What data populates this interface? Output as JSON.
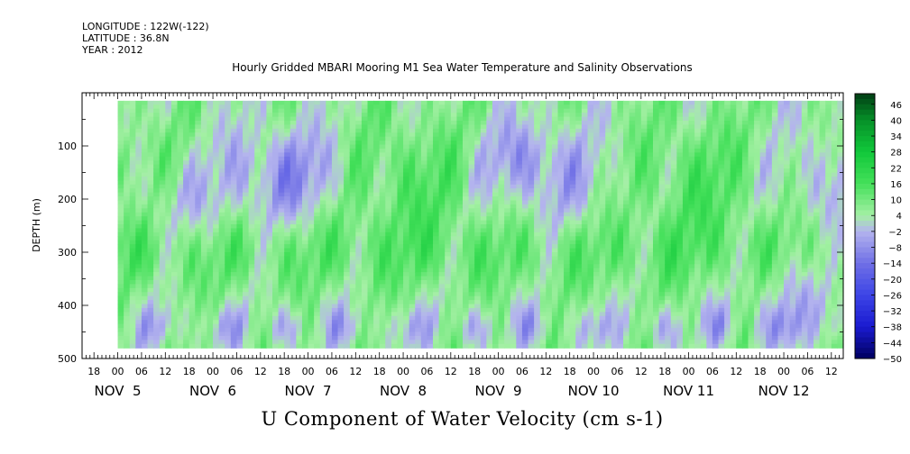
{
  "header": {
    "longitude": "LONGITUDE : 122W(-122)",
    "latitude": "LATITUDE : 36.8N",
    "year": "YEAR : 2012"
  },
  "chart_data": {
    "type": "heatmap",
    "title": "Hourly Gridded MBARI Mooring M1 Sea Water Temperature and Salinity Observations",
    "xlabel": "U Component of Water Velocity (cm s-1)",
    "ylabel": "DEPTH (m)",
    "ylim": [
      500,
      0
    ],
    "y_ticks": [
      100,
      200,
      300,
      400,
      500
    ],
    "x_range_hours": [
      "NOV 4 15:00",
      "NOV 12 15:00"
    ],
    "x_hour_labels": [
      "18",
      "00",
      "06",
      "12",
      "18",
      "00",
      "06",
      "12",
      "18",
      "00",
      "06",
      "12",
      "18",
      "00",
      "06",
      "12",
      "18",
      "00",
      "06",
      "12",
      "18",
      "00",
      "06",
      "12",
      "18",
      "00",
      "06",
      "12",
      "18",
      "00",
      "06",
      "12"
    ],
    "x_day_labels": [
      "NOV  5",
      "NOV  6",
      "NOV  7",
      "NOV  8",
      "NOV  9",
      "NOV 10",
      "NOV 11",
      "NOV 12"
    ],
    "colorbar": {
      "labels": [
        "46",
        "40",
        "34",
        "28",
        "22",
        "16",
        "10",
        "4",
        "-2",
        "-8",
        "-14",
        "-20",
        "-26",
        "-32",
        "-38",
        "-44",
        "-50"
      ],
      "min": -50,
      "max": 50,
      "step": 2
    },
    "colors": {
      "strong_pos": "#003d14",
      "pos": "#11c83a",
      "weak_pos": "#a4f0a4",
      "weak_neg": "#b4b4ee",
      "neg": "#7070e6",
      "strong_neg": "#000060"
    }
  }
}
